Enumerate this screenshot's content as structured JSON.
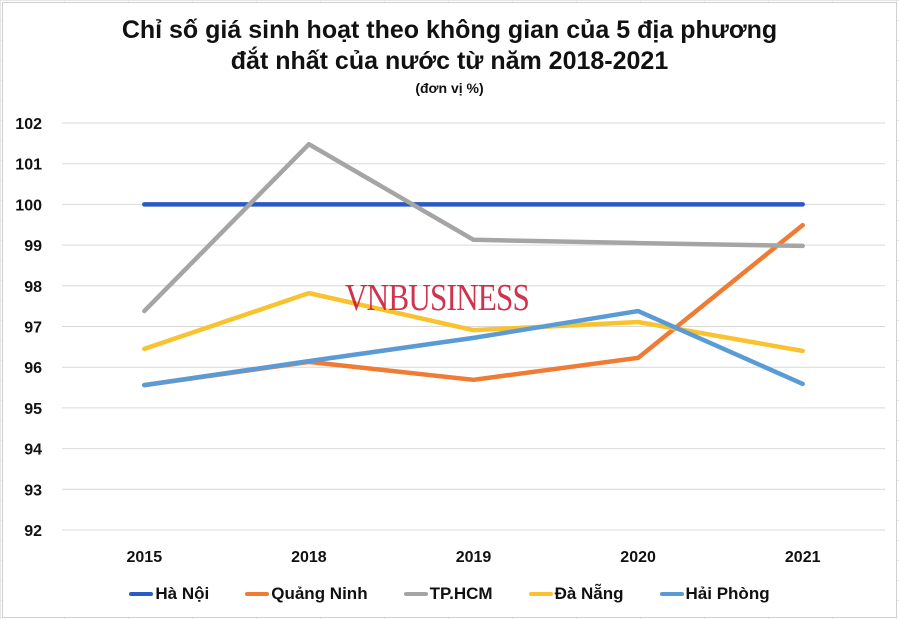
{
  "chart_data": {
    "type": "line",
    "title": "Chỉ số giá sinh hoạt theo không gian của 5 địa phương",
    "title_line2": "đắt nhất của nước từ năm 2018-2021",
    "subtitle": "(đơn vị %)",
    "categories": [
      "2015",
      "2018",
      "2019",
      "2020",
      "2021"
    ],
    "ylim": [
      92,
      102
    ],
    "yticks": [
      "92",
      "93",
      "94",
      "95",
      "96",
      "97",
      "98",
      "99",
      "100",
      "101",
      "102"
    ],
    "grid": true,
    "legend": "bottom",
    "series": [
      {
        "name": "Hà Nội",
        "color": "#2a5bc4",
        "values": [
          100,
          100,
          100,
          100,
          100
        ]
      },
      {
        "name": "Quảng Ninh",
        "color": "#ef7b34",
        "values": [
          95.56,
          96.13,
          95.69,
          96.23,
          99.49
        ]
      },
      {
        "name": "TP.HCM",
        "color": "#a5a5a5",
        "values": [
          97.38,
          101.48,
          99.13,
          99.05,
          98.98
        ]
      },
      {
        "name": "Đà Nẵng",
        "color": "#f9c22e",
        "values": [
          96.45,
          97.82,
          96.91,
          97.11,
          96.4
        ]
      },
      {
        "name": "Hải Phòng",
        "color": "#5b9bd5",
        "values": [
          95.56,
          96.15,
          96.72,
          97.38,
          95.59
        ]
      }
    ]
  },
  "watermark": "VNBUSINESS"
}
